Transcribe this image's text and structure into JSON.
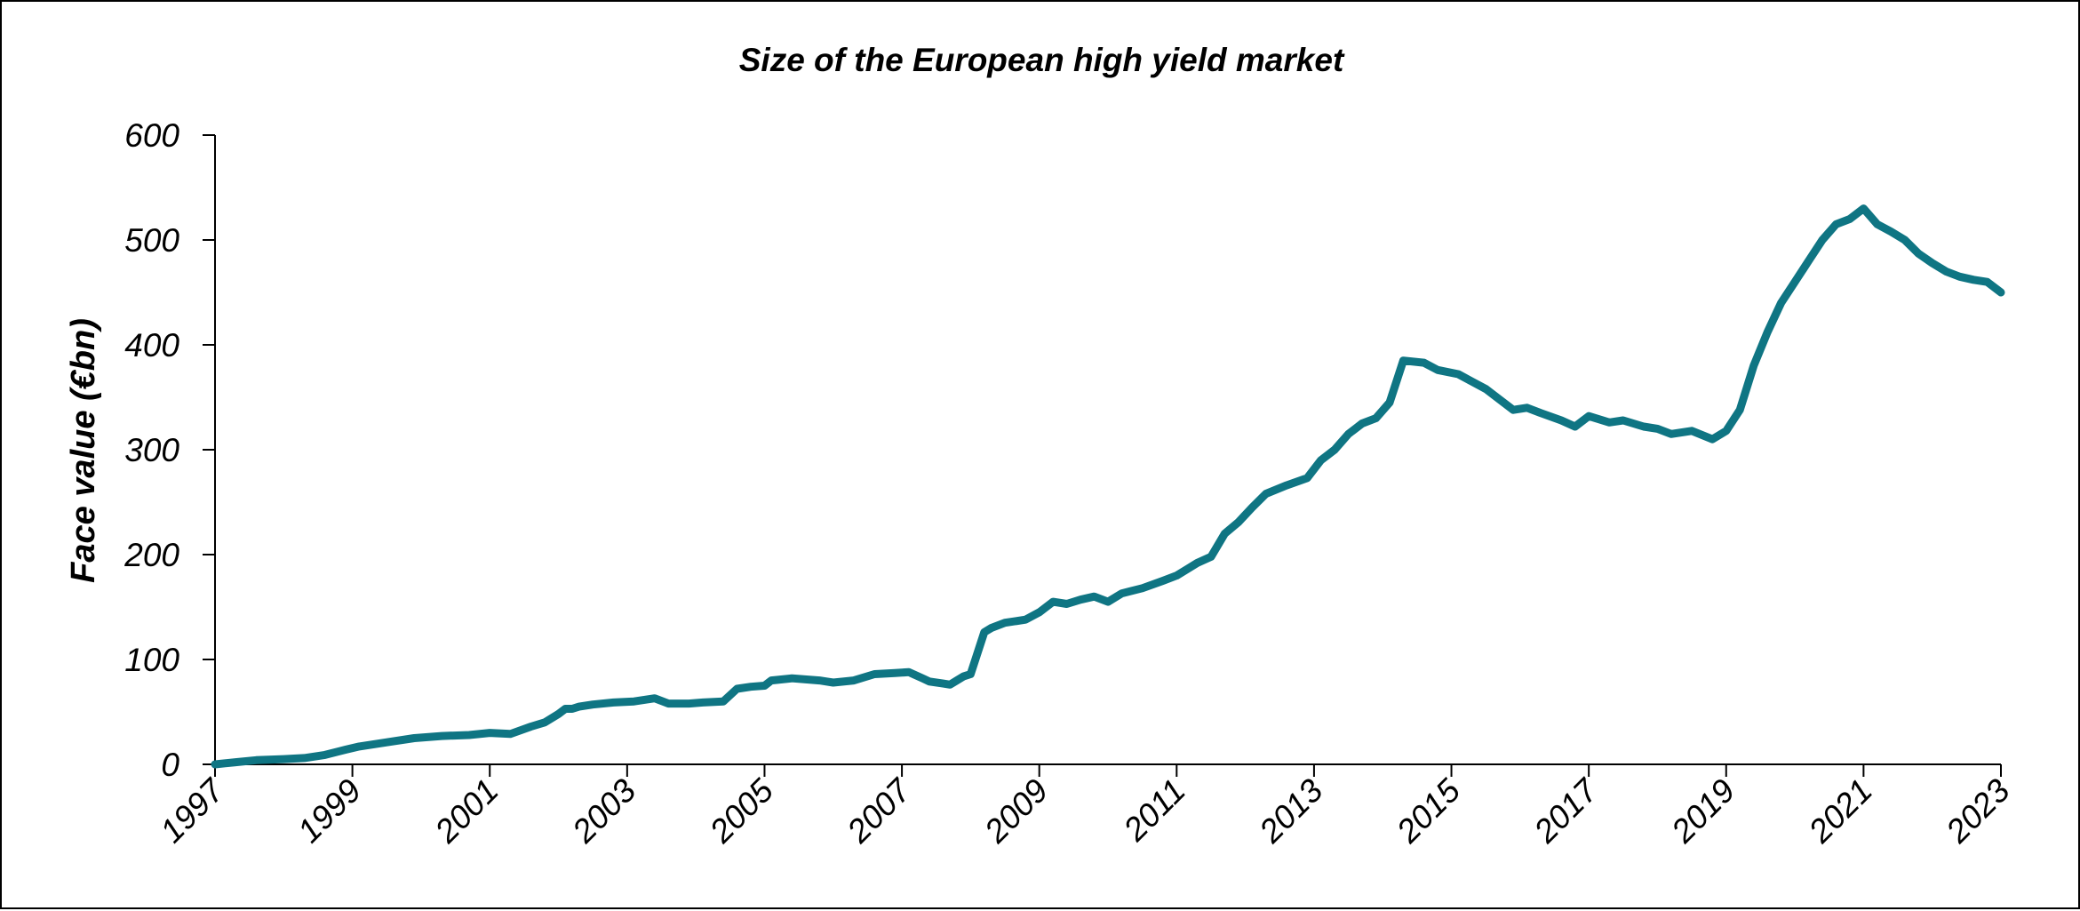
{
  "chart_data": {
    "type": "line",
    "title": "Size of the European high yield market",
    "xlabel": "",
    "ylabel": "Face value (€bn)",
    "xlim": [
      1997,
      2023
    ],
    "ylim": [
      0,
      600
    ],
    "grid": false,
    "legend": "none",
    "x_ticks": [
      "1997",
      "1999",
      "2001",
      "2003",
      "2005",
      "2007",
      "2009",
      "2011",
      "2013",
      "2015",
      "2017",
      "2019",
      "2021",
      "2023"
    ],
    "y_ticks": [
      "0",
      "100",
      "200",
      "300",
      "400",
      "500",
      "600"
    ],
    "series": [
      {
        "color": "#0f7583",
        "x": [
          1997.0,
          1997.3,
          1997.6,
          1998.0,
          1998.3,
          1998.6,
          1998.9,
          1999.1,
          1999.5,
          1999.9,
          2000.3,
          2000.7,
          2001.0,
          2001.3,
          2001.6,
          2001.8,
          2002.0,
          2002.1,
          2002.2,
          2002.3,
          2002.5,
          2002.8,
          2003.1,
          2003.4,
          2003.6,
          2003.9,
          2004.1,
          2004.4,
          2004.6,
          2004.8,
          2005.0,
          2005.1,
          2005.4,
          2005.8,
          2006.0,
          2006.3,
          2006.6,
          2006.9,
          2007.1,
          2007.3,
          2007.4,
          2007.6,
          2007.7,
          2007.8,
          2007.9,
          2008.0,
          2008.2,
          2008.3,
          2008.5,
          2008.8,
          2009.0,
          2009.2,
          2009.4,
          2009.6,
          2009.8,
          2010.0,
          2010.2,
          2010.5,
          2010.8,
          2011.0,
          2011.3,
          2011.5,
          2011.7,
          2011.9,
          2012.1,
          2012.3,
          2012.6,
          2012.9,
          2013.1,
          2013.3,
          2013.5,
          2013.7,
          2013.9,
          2014.1,
          2014.3,
          2014.6,
          2014.8,
          2015.1,
          2015.3,
          2015.5,
          2015.7,
          2015.9,
          2016.1,
          2016.3,
          2016.6,
          2016.8,
          2017.0,
          2017.3,
          2017.5,
          2017.8,
          2018.0,
          2018.2,
          2018.5,
          2018.8,
          2019.0,
          2019.2,
          2019.4,
          2019.6,
          2019.8,
          2020.0,
          2020.2,
          2020.4,
          2020.6,
          2020.8,
          2021.0,
          2021.2,
          2021.4,
          2021.6,
          2021.8,
          2022.0,
          2022.2,
          2022.4,
          2022.6,
          2022.8,
          2023.0
        ],
        "values": [
          0,
          2,
          4,
          5,
          6,
          9,
          14,
          17,
          21,
          25,
          27,
          28,
          30,
          29,
          36,
          40,
          48,
          53,
          53,
          55,
          57,
          59,
          60,
          63,
          58,
          58,
          59,
          60,
          72,
          74,
          75,
          80,
          82,
          80,
          78,
          80,
          86,
          87,
          88,
          82,
          79,
          77,
          76,
          80,
          84,
          86,
          126,
          130,
          135,
          138,
          145,
          155,
          153,
          157,
          160,
          155,
          163,
          168,
          175,
          180,
          192,
          198,
          220,
          231,
          245,
          258,
          266,
          273,
          290,
          300,
          315,
          325,
          330,
          345,
          385,
          383,
          376,
          372,
          365,
          358,
          348,
          338,
          340,
          335,
          328,
          322,
          332,
          326,
          328,
          322,
          320,
          315,
          318,
          310,
          318,
          338,
          380,
          412,
          440,
          460,
          480,
          500,
          515,
          520,
          530,
          515,
          508,
          500,
          487,
          478,
          470,
          465,
          462,
          460,
          450
        ]
      }
    ]
  }
}
